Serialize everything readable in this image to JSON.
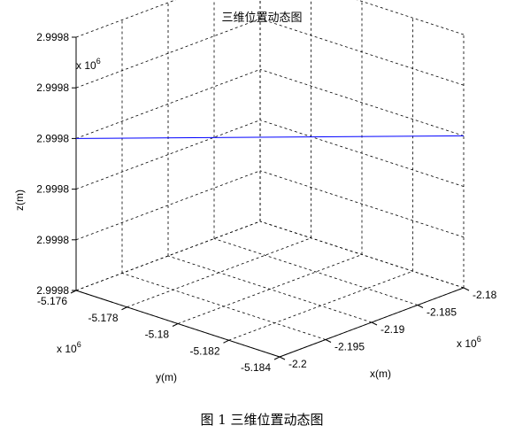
{
  "chart_data": {
    "type": "line",
    "title": "三维位置动态图",
    "xlabel": "x(m)",
    "ylabel": "y(m)",
    "zlabel": "z(m)",
    "x_exponent": "x 10",
    "x_exponent_power": "6",
    "y_exponent": "x 10",
    "y_exponent_power": "6",
    "z_exponent": "x 10",
    "z_exponent_power": "6",
    "x_ticks": [
      "-2.2",
      "-2.195",
      "-2.19",
      "-2.185",
      "-2.18"
    ],
    "y_ticks": [
      "-5.176",
      "-5.178",
      "-5.18",
      "-5.182",
      "-5.184"
    ],
    "z_ticks": [
      "2.9998",
      "2.9998",
      "2.9998",
      "2.9998",
      "2.9998",
      "2.9998"
    ],
    "xlim": [
      -2.2,
      -2.18
    ],
    "ylim": [
      -5.184,
      -5.176
    ],
    "grid": true,
    "series": [
      {
        "color": "#0000ff",
        "x": [
          -2.2,
          -2.18
        ],
        "y": [
          -5.176,
          -5.184
        ],
        "z_level": 0.6
      }
    ]
  },
  "caption": "图 1  三维位置动态图"
}
